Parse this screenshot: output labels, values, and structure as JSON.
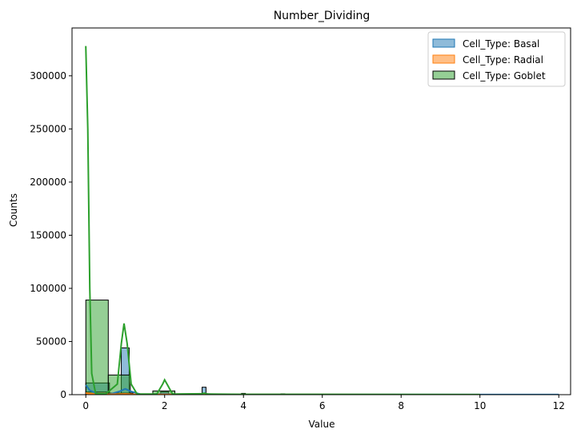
{
  "chart_data": {
    "type": "histogram",
    "title": "Number_Dividing",
    "xlabel": "Value",
    "ylabel": "Counts",
    "xlim": [
      -0.35,
      12.3
    ],
    "ylim": [
      0,
      345000
    ],
    "xticks": [
      0,
      2,
      4,
      6,
      8,
      10,
      12
    ],
    "yticks": [
      0,
      50000,
      100000,
      150000,
      200000,
      250000,
      300000
    ],
    "legend_position": "top-right",
    "series": [
      {
        "name": "Cell_Type: Basal",
        "color": "#1f77b4",
        "fill": "rgba(31,119,180,0.5)",
        "bins": [
          {
            "x0": 0.0,
            "x1": 0.6,
            "count": 11000
          },
          {
            "x0": 0.9,
            "x1": 1.1,
            "count": 44000
          },
          {
            "x0": 1.9,
            "x1": 2.1,
            "count": 2500
          },
          {
            "x0": 2.95,
            "x1": 3.05,
            "count": 7000
          },
          {
            "x0": 3.95,
            "x1": 4.05,
            "count": 1200
          },
          {
            "x0": 4.95,
            "x1": 5.05,
            "count": 800
          }
        ],
        "kde": [
          [
            0,
            9000
          ],
          [
            0.1,
            4000
          ],
          [
            0.3,
            800
          ],
          [
            0.6,
            300
          ],
          [
            0.85,
            3000
          ],
          [
            1.0,
            5500
          ],
          [
            1.15,
            3000
          ],
          [
            1.4,
            200
          ],
          [
            2.0,
            500
          ],
          [
            2.5,
            100
          ],
          [
            3.0,
            600
          ],
          [
            3.5,
            100
          ],
          [
            12.0,
            50
          ]
        ]
      },
      {
        "name": "Cell_Type: Radial",
        "color": "#ff7f0e",
        "fill": "rgba(255,127,14,0.5)",
        "bins": [
          {
            "x0": 0.0,
            "x1": 0.6,
            "count": 2500
          },
          {
            "x0": 0.6,
            "x1": 1.2,
            "count": 1500
          },
          {
            "x0": 1.9,
            "x1": 2.2,
            "count": 300
          }
        ],
        "kde": [
          [
            0,
            1500
          ],
          [
            0.2,
            600
          ],
          [
            0.5,
            200
          ],
          [
            1.0,
            700
          ],
          [
            1.3,
            150
          ],
          [
            2.0,
            150
          ],
          [
            3.0,
            50
          ],
          [
            10.0,
            10
          ]
        ]
      },
      {
        "name": "Cell_Type: Goblet",
        "color": "#2ca02c",
        "fill": "rgba(44,160,44,0.5)",
        "bins": [
          {
            "x0": 0.0,
            "x1": 0.57,
            "count": 89000
          },
          {
            "x0": 0.57,
            "x1": 1.13,
            "count": 18500
          },
          {
            "x0": 1.7,
            "x1": 2.26,
            "count": 3500
          }
        ],
        "kde": [
          [
            0,
            328000
          ],
          [
            0.05,
            250000
          ],
          [
            0.1,
            100000
          ],
          [
            0.15,
            20000
          ],
          [
            0.25,
            1000
          ],
          [
            0.5,
            500
          ],
          [
            0.8,
            10000
          ],
          [
            0.9,
            48000
          ],
          [
            0.97,
            67000
          ],
          [
            1.05,
            48000
          ],
          [
            1.15,
            10000
          ],
          [
            1.3,
            500
          ],
          [
            1.8,
            500
          ],
          [
            1.95,
            10000
          ],
          [
            2.0,
            14000
          ],
          [
            2.06,
            10000
          ],
          [
            2.2,
            500
          ],
          [
            2.95,
            800
          ],
          [
            3.0,
            1500
          ],
          [
            3.1,
            500
          ],
          [
            4.0,
            300
          ],
          [
            10.0,
            100
          ]
        ]
      }
    ]
  }
}
